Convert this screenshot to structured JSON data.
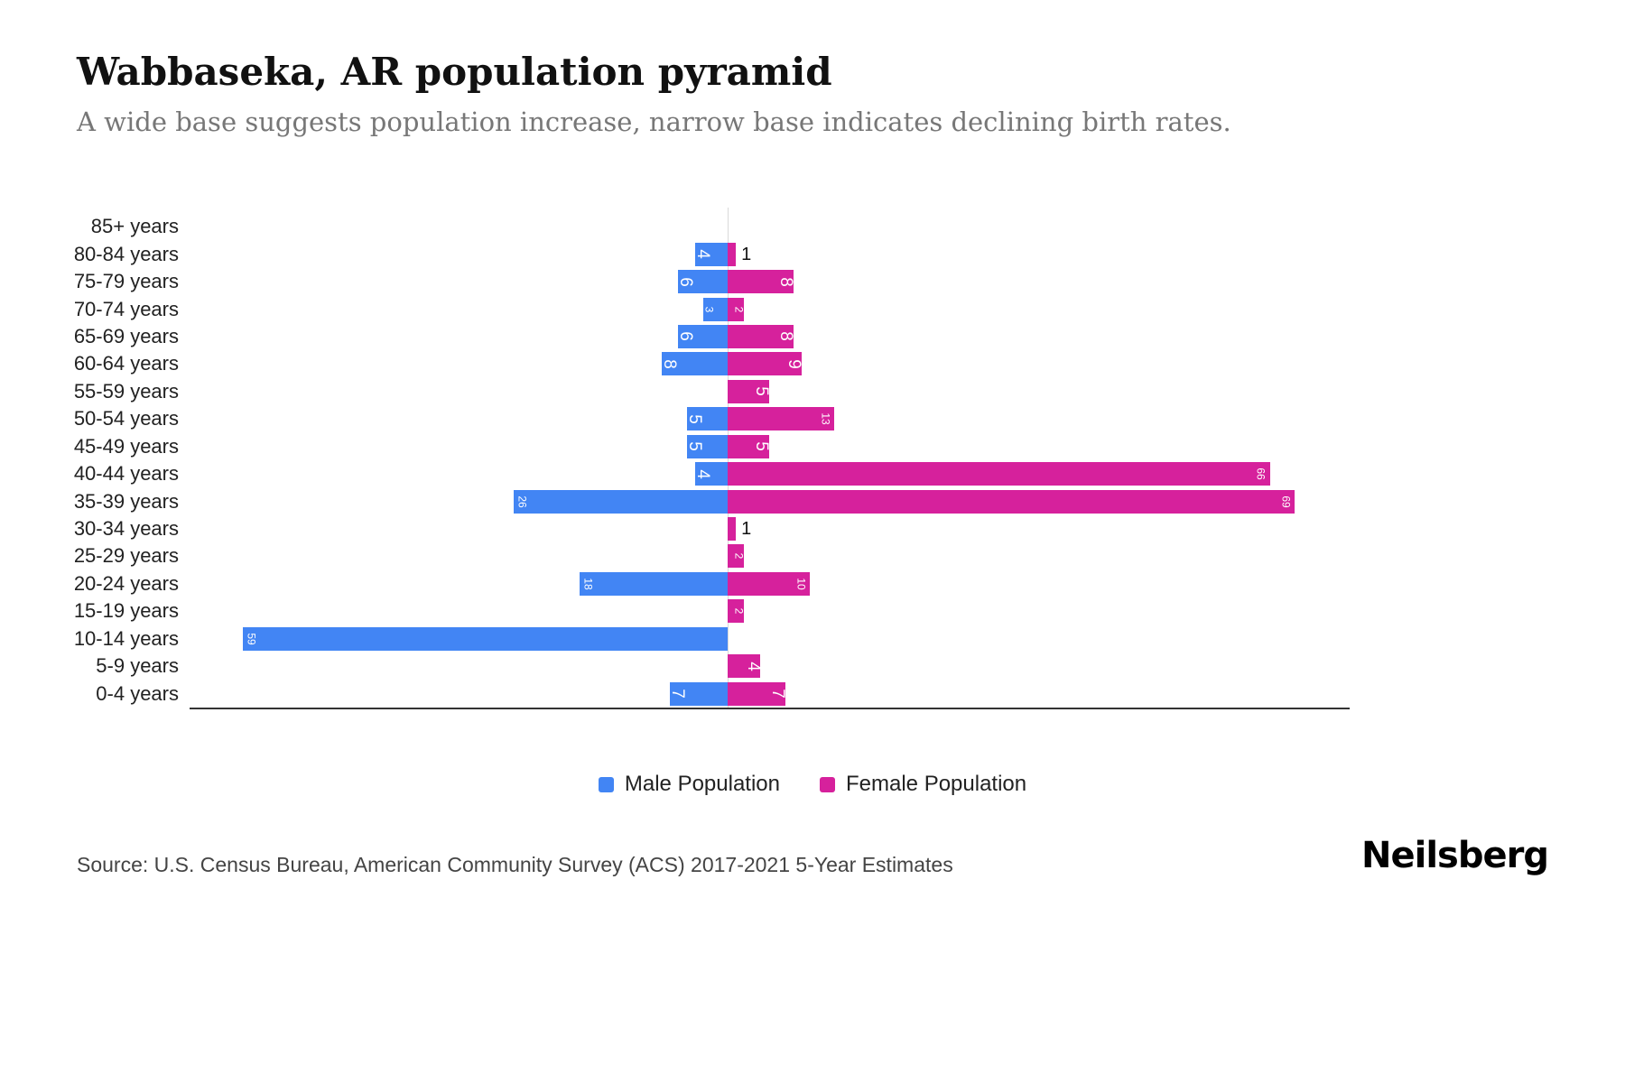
{
  "header": {
    "title": "Wabbaseka, AR population pyramid",
    "subtitle": "A wide base suggests population increase, narrow base indicates declining birth rates."
  },
  "chart_data": {
    "type": "bar",
    "variant": "population-pyramid",
    "title": "Wabbaseka, AR population pyramid",
    "categories": [
      "85+ years",
      "80-84 years",
      "75-79 years",
      "70-74 years",
      "65-69 years",
      "60-64 years",
      "55-59 years",
      "50-54 years",
      "45-49 years",
      "40-44 years",
      "35-39 years",
      "30-34 years",
      "25-29 years",
      "20-24 years",
      "15-19 years",
      "10-14 years",
      "5-9 years",
      "0-4 years"
    ],
    "series": [
      {
        "name": "Male Population",
        "color": "#4285f4",
        "values": [
          0,
          4,
          6,
          3,
          6,
          8,
          0,
          5,
          5,
          4,
          26,
          0,
          0,
          18,
          0,
          59,
          0,
          7
        ]
      },
      {
        "name": "Female Population",
        "color": "#d6219c",
        "values": [
          0,
          1,
          8,
          2,
          8,
          9,
          5,
          13,
          5,
          66,
          69,
          1,
          2,
          10,
          2,
          0,
          4,
          7
        ]
      }
    ],
    "value_labels": "shown on bars, rotated; values of 1 shown outside bar in black",
    "legend_position": "bottom",
    "grid": "center axis line only"
  },
  "footer": {
    "source": "Source: U.S. Census Bureau, American Community Survey (ACS) 2017-2021 5-Year Estimates",
    "brand": "Neilsberg"
  }
}
